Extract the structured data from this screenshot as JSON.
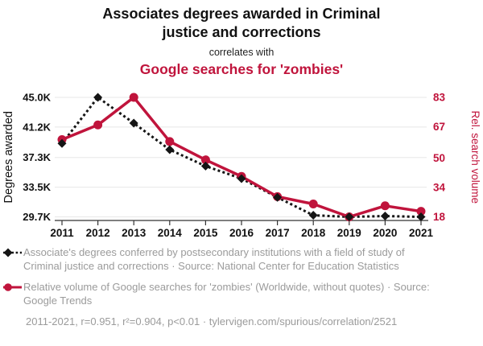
{
  "header": {
    "title": "Associates degrees awarded in Criminal justice and corrections",
    "connector": "correlates with",
    "subtitle": "Google searches for 'zombies'"
  },
  "colors": {
    "accent_red": "#c0143c",
    "series_black": "#151515",
    "text_black": "#111111",
    "legend_gray": "#9b9b9b",
    "gridline": "#e7e7e7",
    "axis_line": "#333333"
  },
  "chart_data": {
    "type": "line",
    "x": [
      2011,
      2012,
      2013,
      2014,
      2015,
      2016,
      2017,
      2018,
      2019,
      2020,
      2021
    ],
    "x_tick_labels": [
      "2011",
      "2012",
      "2013",
      "2014",
      "2015",
      "2016",
      "2017",
      "2018",
      "2019",
      "2020",
      "2021"
    ],
    "series": [
      {
        "name": "Associate's degrees in Criminal justice and corrections",
        "axis": "left",
        "units": "thousands of degrees",
        "marker": "diamond",
        "line_style": "dotted",
        "color": "#151515",
        "values": [
          39.1,
          45.0,
          41.7,
          38.3,
          36.2,
          34.6,
          32.2,
          29.9,
          29.7,
          29.8,
          29.7
        ]
      },
      {
        "name": "Google searches for 'zombies'",
        "axis": "right",
        "units": "relative search volume",
        "marker": "circle",
        "line_style": "solid",
        "color": "#c0143c",
        "values": [
          60,
          68,
          83,
          59,
          49,
          40,
          29,
          25,
          18,
          24,
          21
        ]
      }
    ],
    "left_axis": {
      "label": "Degrees awarded",
      "min": 29.7,
      "max": 45.0,
      "ticks": [
        45.0,
        41.2,
        37.3,
        33.5,
        29.7
      ],
      "tick_labels": [
        "45.0K",
        "41.2K",
        "37.3K",
        "33.5K",
        "29.7K"
      ]
    },
    "right_axis": {
      "label": "Rel. search volume",
      "min": 18,
      "max": 83,
      "ticks": [
        83,
        67,
        50,
        34,
        18
      ],
      "tick_labels": [
        "83",
        "67",
        "50",
        "34",
        "18"
      ]
    },
    "grid": true,
    "legend_position": "bottom"
  },
  "legend": {
    "items": [
      {
        "label": "Associate's degrees conferred by postsecondary institutions with a field of study of Criminal justice and corrections · Source: National Center for Education Statistics"
      },
      {
        "label": "Relative volume of Google searches for 'zombies' (Worldwide, without quotes) · Source: Google Trends"
      }
    ],
    "footnote": "2011-2021, r=0.951, r²=0.904, p<0.01 · tylervigen.com/spurious/correlation/2521"
  }
}
